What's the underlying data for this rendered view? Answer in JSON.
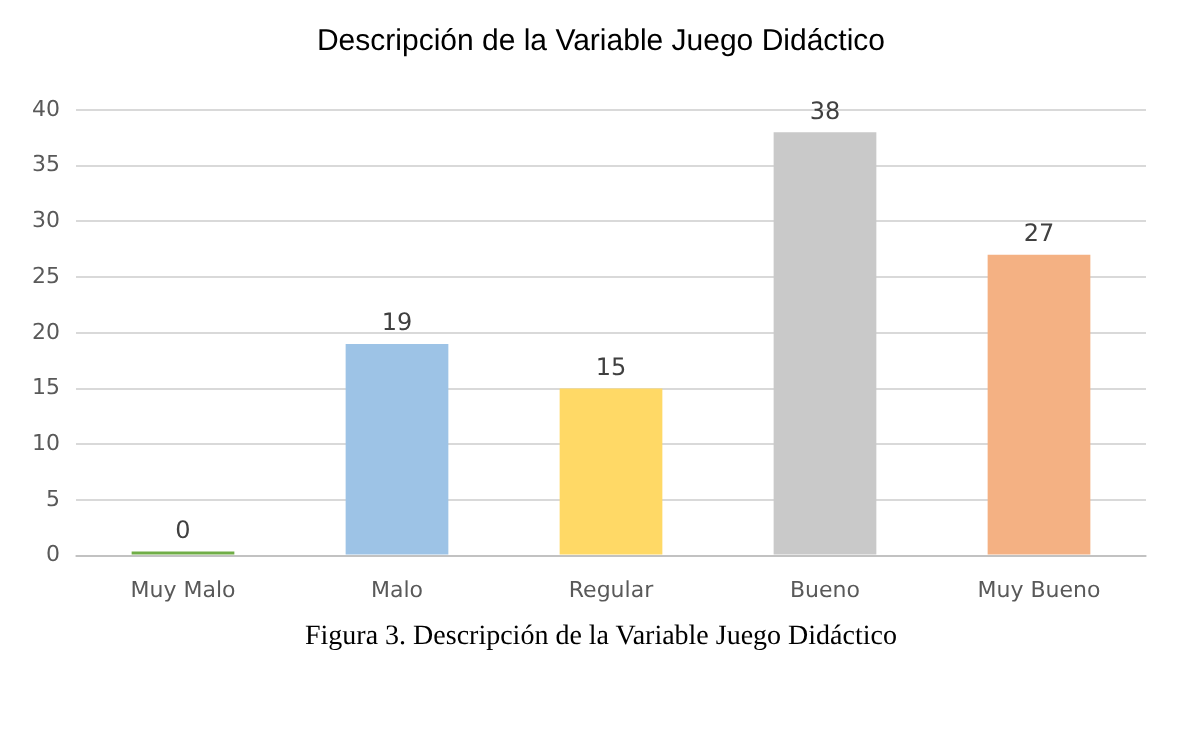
{
  "chart_data": {
    "type": "bar",
    "title": "Descripción de la Variable Juego Didáctico",
    "categories": [
      "Muy Malo",
      "Malo",
      "Regular",
      "Bueno",
      "Muy Bueno"
    ],
    "values": [
      0,
      19,
      15,
      38,
      27
    ],
    "colors": [
      "#70ad47",
      "#9dc3e6",
      "#ffd966",
      "#c9c9c9",
      "#f4b183"
    ],
    "ylim": [
      0,
      40
    ],
    "yticks": [
      0,
      5,
      10,
      15,
      20,
      25,
      30,
      35,
      40
    ],
    "grid": "y",
    "data_labels": true,
    "annotations": [
      "Figura 3. Descripción de la Variable Juego Didáctico"
    ]
  }
}
